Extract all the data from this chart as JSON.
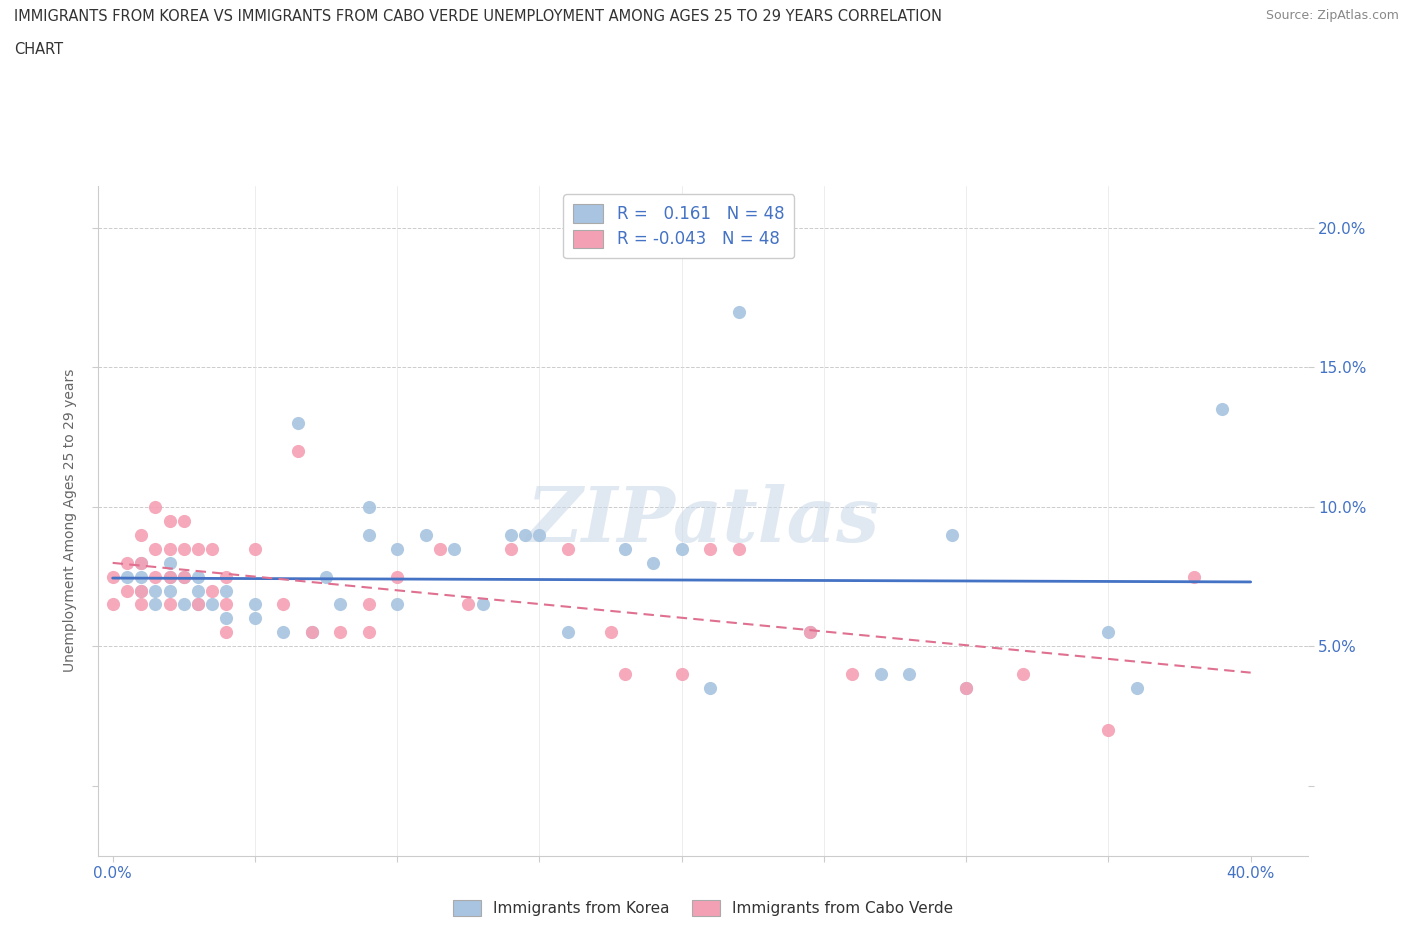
{
  "title_line1": "IMMIGRANTS FROM KOREA VS IMMIGRANTS FROM CABO VERDE UNEMPLOYMENT AMONG AGES 25 TO 29 YEARS CORRELATION",
  "title_line2": "CHART",
  "source": "Source: ZipAtlas.com",
  "ylabel": "Unemployment Among Ages 25 to 29 years",
  "korea_R": 0.161,
  "caboverde_R": -0.043,
  "N": 48,
  "korea_color": "#a8c4e0",
  "caboverde_color": "#f4a0b4",
  "korea_line_color": "#4472C4",
  "caboverde_line_color": "#e07090",
  "watermark": "ZIPatlas",
  "xlim": [
    -0.005,
    0.42
  ],
  "ylim": [
    -0.025,
    0.215
  ],
  "ytick_positions": [
    0.0,
    0.05,
    0.1,
    0.15,
    0.2
  ],
  "ytick_labels_left": [
    "",
    "",
    "",
    "",
    ""
  ],
  "ytick_labels_right": [
    "",
    "5.0%",
    "10.0%",
    "15.0%",
    "20.0%"
  ],
  "xtick_positions": [
    0.0,
    0.05,
    0.1,
    0.15,
    0.2,
    0.25,
    0.3,
    0.35,
    0.4
  ],
  "xtick_labels": [
    "0.0%",
    "",
    "",
    "",
    "",
    "",
    "",
    "",
    "40.0%"
  ],
  "korea_x": [
    0.005,
    0.01,
    0.01,
    0.01,
    0.015,
    0.015,
    0.02,
    0.02,
    0.02,
    0.025,
    0.025,
    0.03,
    0.03,
    0.03,
    0.035,
    0.04,
    0.04,
    0.05,
    0.05,
    0.06,
    0.065,
    0.07,
    0.075,
    0.08,
    0.09,
    0.09,
    0.1,
    0.1,
    0.11,
    0.12,
    0.13,
    0.14,
    0.145,
    0.15,
    0.16,
    0.18,
    0.19,
    0.2,
    0.21,
    0.22,
    0.245,
    0.27,
    0.28,
    0.295,
    0.3,
    0.35,
    0.36,
    0.39
  ],
  "korea_y": [
    0.075,
    0.07,
    0.075,
    0.08,
    0.065,
    0.07,
    0.07,
    0.075,
    0.08,
    0.065,
    0.075,
    0.065,
    0.07,
    0.075,
    0.065,
    0.06,
    0.07,
    0.06,
    0.065,
    0.055,
    0.13,
    0.055,
    0.075,
    0.065,
    0.09,
    0.1,
    0.065,
    0.085,
    0.09,
    0.085,
    0.065,
    0.09,
    0.09,
    0.09,
    0.055,
    0.085,
    0.08,
    0.085,
    0.035,
    0.17,
    0.055,
    0.04,
    0.04,
    0.09,
    0.035,
    0.055,
    0.035,
    0.135
  ],
  "caboverde_x": [
    0.0,
    0.0,
    0.005,
    0.005,
    0.01,
    0.01,
    0.01,
    0.01,
    0.015,
    0.015,
    0.015,
    0.02,
    0.02,
    0.02,
    0.02,
    0.025,
    0.025,
    0.025,
    0.03,
    0.03,
    0.035,
    0.035,
    0.04,
    0.04,
    0.04,
    0.05,
    0.06,
    0.065,
    0.07,
    0.08,
    0.09,
    0.09,
    0.1,
    0.115,
    0.125,
    0.14,
    0.16,
    0.175,
    0.18,
    0.2,
    0.21,
    0.22,
    0.245,
    0.26,
    0.3,
    0.32,
    0.35,
    0.38
  ],
  "caboverde_y": [
    0.065,
    0.075,
    0.07,
    0.08,
    0.065,
    0.07,
    0.08,
    0.09,
    0.075,
    0.085,
    0.1,
    0.065,
    0.075,
    0.085,
    0.095,
    0.075,
    0.085,
    0.095,
    0.065,
    0.085,
    0.07,
    0.085,
    0.055,
    0.065,
    0.075,
    0.085,
    0.065,
    0.12,
    0.055,
    0.055,
    0.055,
    0.065,
    0.075,
    0.085,
    0.065,
    0.085,
    0.085,
    0.055,
    0.04,
    0.04,
    0.085,
    0.085,
    0.055,
    0.04,
    0.035,
    0.04,
    0.02,
    0.075
  ],
  "background_color": "#ffffff",
  "grid_color": "#cccccc"
}
